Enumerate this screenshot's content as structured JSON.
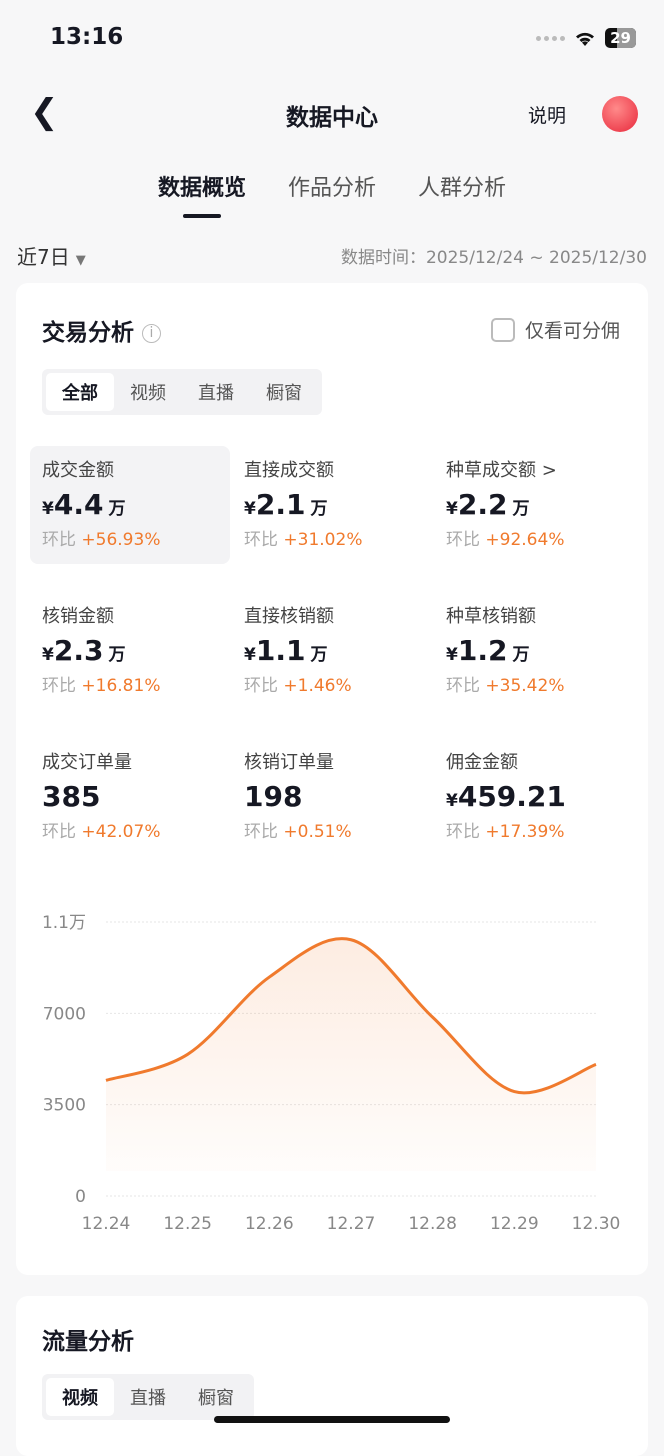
{
  "status": {
    "time": "13:16",
    "battery": "29"
  },
  "nav": {
    "title": "数据中心",
    "help": "说明"
  },
  "tabs": [
    "数据概览",
    "作品分析",
    "人群分析"
  ],
  "filter": {
    "range": "近7日",
    "data_time": "数据时间：2025/12/24 ~ 2025/12/30"
  },
  "trade": {
    "title": "交易分析",
    "commission_only": "仅看可分佣",
    "segments": [
      "全部",
      "视频",
      "直播",
      "橱窗"
    ],
    "metrics": [
      {
        "label": "成交金额",
        "prefix": "¥",
        "value": "4.4",
        "unit": "万",
        "ratio_label": "环比",
        "ratio": "+56.93%"
      },
      {
        "label": "直接成交额",
        "prefix": "¥",
        "value": "2.1",
        "unit": "万",
        "ratio_label": "环比",
        "ratio": "+31.02%"
      },
      {
        "label": "种草成交额 >",
        "prefix": "¥",
        "value": "2.2",
        "unit": "万",
        "ratio_label": "环比",
        "ratio": "+92.64%"
      },
      {
        "label": "核销金额",
        "prefix": "¥",
        "value": "2.3",
        "unit": "万",
        "ratio_label": "环比",
        "ratio": "+16.81%"
      },
      {
        "label": "直接核销额",
        "prefix": "¥",
        "value": "1.1",
        "unit": "万",
        "ratio_label": "环比",
        "ratio": "+1.46%"
      },
      {
        "label": "种草核销额",
        "prefix": "¥",
        "value": "1.2",
        "unit": "万",
        "ratio_label": "环比",
        "ratio": "+35.42%"
      },
      {
        "label": "成交订单量",
        "prefix": "",
        "value": "385",
        "unit": "",
        "ratio_label": "环比",
        "ratio": "+42.07%"
      },
      {
        "label": "核销订单量",
        "prefix": "",
        "value": "198",
        "unit": "",
        "ratio_label": "环比",
        "ratio": "+0.51%"
      },
      {
        "label": "佣金金额",
        "prefix": "¥",
        "value": "459.21",
        "unit": "",
        "ratio_label": "环比",
        "ratio": "+17.39%"
      }
    ]
  },
  "chart_data": {
    "type": "area",
    "categories": [
      "12.24",
      "12.25",
      "12.26",
      "12.27",
      "12.28",
      "12.29",
      "12.30"
    ],
    "values": [
      4430,
      5430,
      8390,
      9820,
      6850,
      4000,
      5040
    ],
    "yticks": [
      "0",
      "3500",
      "7000",
      "1.1万"
    ],
    "ylim": [
      0,
      10500
    ],
    "grid": true,
    "color": "#f07a2d"
  },
  "traffic": {
    "title": "流量分析",
    "segments": [
      "视频",
      "直播",
      "橱窗"
    ]
  }
}
